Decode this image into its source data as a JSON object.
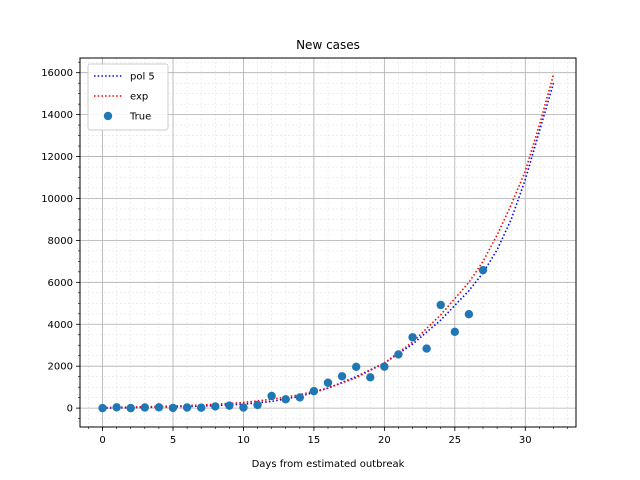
{
  "chart_data": {
    "type": "scatter",
    "title": "New cases",
    "xlabel": "Days from estimated outbreak",
    "ylabel": "",
    "xlim": [
      -1.6,
      33.6
    ],
    "ylim": [
      -900,
      16700
    ],
    "xticks": [
      0,
      5,
      10,
      15,
      20,
      25,
      30
    ],
    "yticks": [
      0,
      2000,
      4000,
      6000,
      8000,
      10000,
      12000,
      14000,
      16000
    ],
    "grid": true,
    "legend_position": "top-left",
    "series": [
      {
        "name": "pol 5",
        "kind": "line",
        "style": "dotted",
        "color": "#0000ff",
        "x": [
          0,
          2,
          4,
          6,
          8,
          10,
          12,
          14,
          16,
          18,
          20,
          22,
          24,
          26,
          27,
          28,
          29,
          30,
          31,
          32
        ],
        "y": [
          0,
          20,
          50,
          80,
          120,
          190,
          320,
          560,
          950,
          1500,
          2150,
          3050,
          4200,
          5600,
          6450,
          7550,
          9000,
          10900,
          13200,
          15500
        ]
      },
      {
        "name": "exp",
        "kind": "line",
        "style": "dotted",
        "color": "#ff0000",
        "x": [
          0,
          2,
          4,
          6,
          8,
          10,
          12,
          14,
          16,
          18,
          20,
          22,
          24,
          26,
          27,
          28,
          29,
          30,
          31,
          32
        ],
        "y": [
          30,
          50,
          80,
          120,
          180,
          270,
          420,
          640,
          960,
          1450,
          2150,
          3150,
          4450,
          6000,
          7000,
          8250,
          9700,
          11300,
          13500,
          15900
        ]
      },
      {
        "name": "True",
        "kind": "scatter",
        "color": "#1f77b4",
        "x": [
          0,
          1,
          2,
          3,
          4,
          5,
          6,
          7,
          8,
          9,
          10,
          11,
          12,
          13,
          14,
          15,
          16,
          17,
          18,
          19,
          20,
          21,
          22,
          23,
          24,
          25,
          26,
          27
        ],
        "y": [
          0,
          40,
          0,
          30,
          40,
          10,
          30,
          20,
          80,
          120,
          30,
          150,
          580,
          420,
          510,
          810,
          1210,
          1520,
          1970,
          1470,
          1980,
          2560,
          3380,
          2840,
          4920,
          3640,
          4480,
          6580
        ]
      }
    ]
  }
}
